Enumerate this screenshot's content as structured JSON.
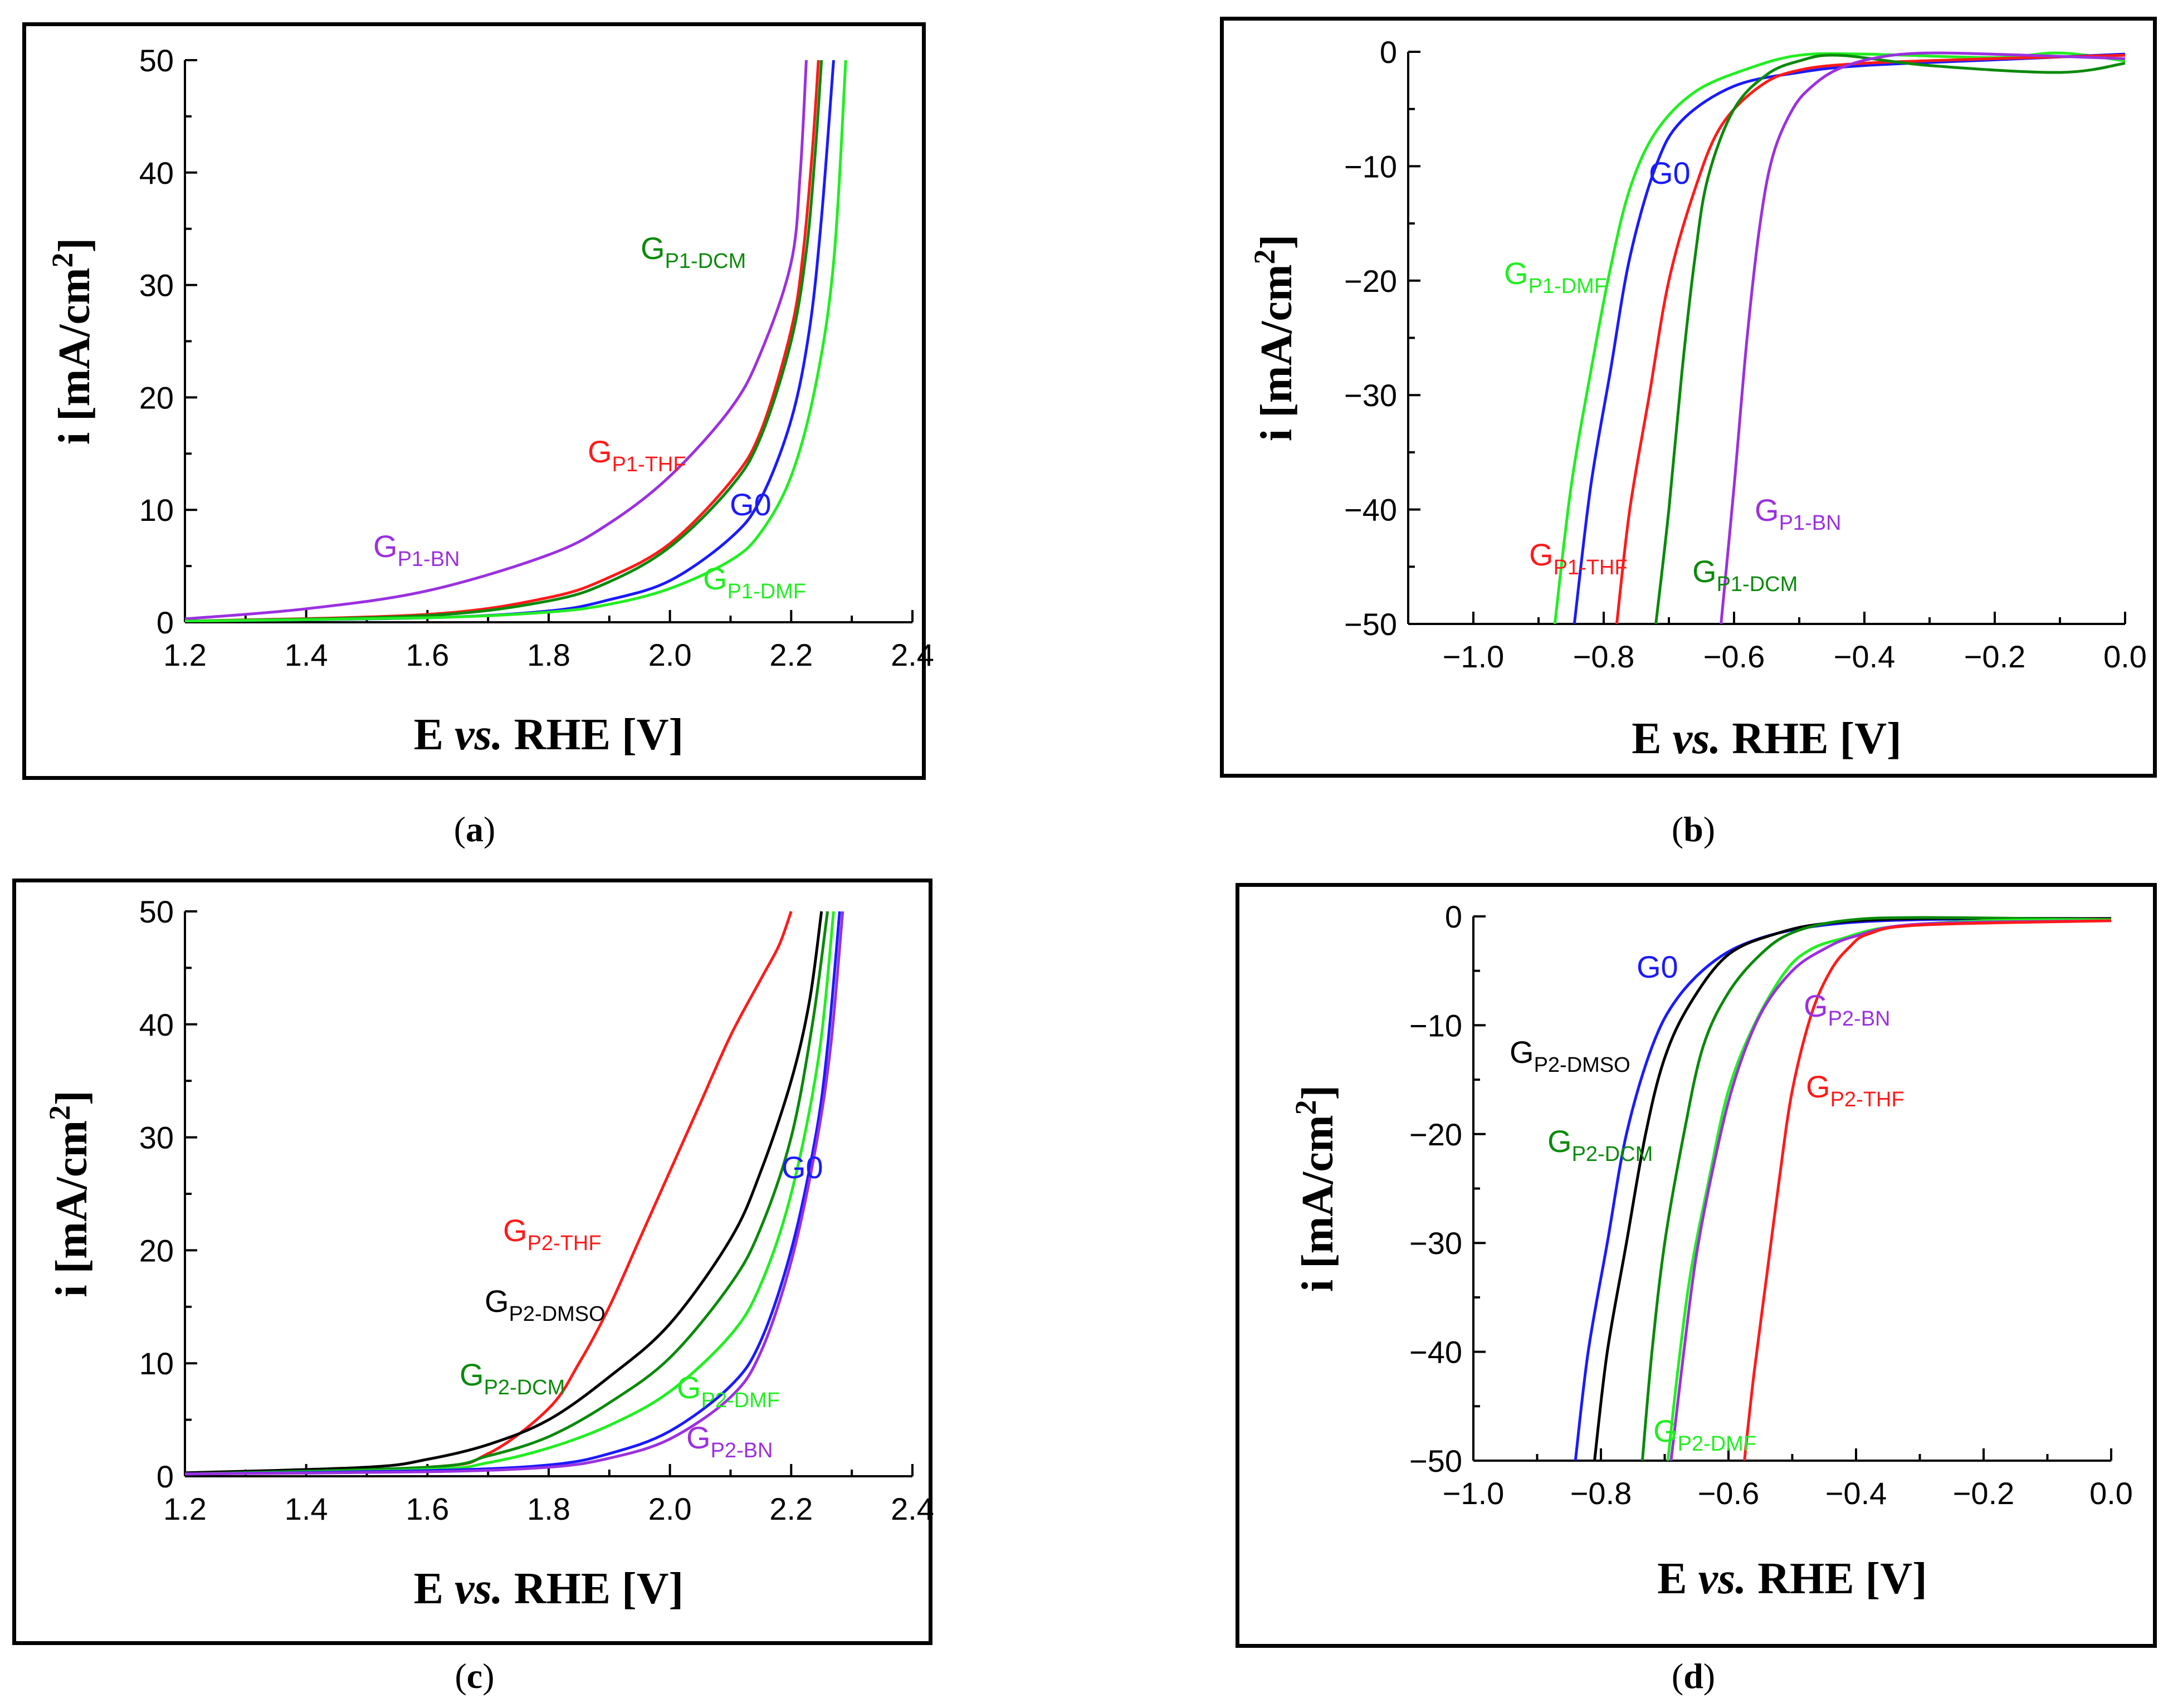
{
  "captions": [
    "a",
    "b",
    "c",
    "d"
  ],
  "chart_data": [
    {
      "id": "a",
      "type": "line",
      "xlabel": "E vs. RHE [V]",
      "xlabel_parts": [
        "E ",
        "vs.",
        " RHE [V]"
      ],
      "ylabel": "i [mA/cm2]",
      "ylabel_parts": [
        "i [mA/cm",
        "2",
        "]"
      ],
      "xlim": [
        1.2,
        2.4
      ],
      "ylim": [
        0,
        50
      ],
      "xticks": [
        1.2,
        1.4,
        1.6,
        1.8,
        2.0,
        2.2,
        2.4
      ],
      "xtick_labels": [
        "1.2",
        "1.4",
        "1.6",
        "1.8",
        "2.0",
        "2.2",
        "2.4"
      ],
      "yticks": [
        0,
        10,
        20,
        30,
        40,
        50
      ],
      "ytick_labels": [
        "0",
        "10",
        "20",
        "30",
        "40",
        "50"
      ],
      "series": [
        {
          "name": "GP1-BN",
          "color": "#9b30e0",
          "x": [
            1.2,
            1.4,
            1.6,
            1.8,
            1.9,
            2.0,
            2.1,
            2.15,
            2.2,
            2.215,
            2.225
          ],
          "y": [
            0.3,
            1.2,
            2.8,
            6.0,
            8.8,
            13.0,
            19.0,
            24.0,
            32.0,
            40.0,
            50.0
          ]
        },
        {
          "name": "GP1-THF",
          "color": "#ff1a1a",
          "x": [
            1.2,
            1.6,
            1.8,
            1.9,
            2.0,
            2.1,
            2.15,
            2.2,
            2.22,
            2.235,
            2.245
          ],
          "y": [
            0.1,
            0.7,
            2.2,
            4.0,
            7.0,
            12.5,
            17.0,
            26.0,
            33.0,
            42.0,
            50.0
          ]
        },
        {
          "name": "GP1-DCM",
          "color": "#0a8a0a",
          "x": [
            1.2,
            1.6,
            1.8,
            1.9,
            2.0,
            2.1,
            2.15,
            2.2,
            2.225,
            2.24,
            2.25
          ],
          "y": [
            0.1,
            0.6,
            1.9,
            3.6,
            6.7,
            12.0,
            16.5,
            25.0,
            33.0,
            42.0,
            50.0
          ]
        },
        {
          "name": "G0",
          "color": "#1a1aff",
          "x": [
            1.2,
            1.6,
            1.8,
            1.9,
            2.0,
            2.1,
            2.15,
            2.2,
            2.23,
            2.25,
            2.27
          ],
          "y": [
            0.1,
            0.4,
            1.0,
            2.0,
            3.7,
            7.5,
            11.0,
            18.0,
            26.0,
            36.0,
            50.0
          ]
        },
        {
          "name": "GP1-DMF",
          "color": "#22ee22",
          "x": [
            1.2,
            1.6,
            1.8,
            1.9,
            2.0,
            2.1,
            2.15,
            2.2,
            2.24,
            2.27,
            2.29
          ],
          "y": [
            0.1,
            0.4,
            0.9,
            1.6,
            3.0,
            5.5,
            8.0,
            13.0,
            21.0,
            32.0,
            50.0
          ]
        }
      ],
      "labels": [
        {
          "main": "G",
          "sub": "P1-BN",
          "color": "#9b30e0"
        },
        {
          "main": "G",
          "sub": "P1-THF",
          "color": "#ff1a1a"
        },
        {
          "main": "G",
          "sub": "P1-DCM",
          "color": "#0a8a0a"
        },
        {
          "main": "G0",
          "sub": "",
          "color": "#1a1aff"
        },
        {
          "main": "G",
          "sub": "P1-DMF",
          "color": "#22ee22"
        }
      ]
    },
    {
      "id": "b",
      "type": "line",
      "xlabel": "E vs. RHE [V]",
      "xlabel_parts": [
        "E ",
        "vs.",
        " RHE [V]"
      ],
      "ylabel": "i [mA/cm2]",
      "ylabel_parts": [
        "i [mA/cm",
        "2",
        "]"
      ],
      "xlim": [
        -1.1,
        0.0
      ],
      "ylim": [
        -50,
        0
      ],
      "xticks": [
        -1.0,
        -0.8,
        -0.6,
        -0.4,
        -0.2,
        0.0
      ],
      "xtick_labels": [
        "−1.0",
        "−0.8",
        "−0.6",
        "−0.4",
        "−0.2",
        "0.0"
      ],
      "yticks": [
        0,
        -10,
        -20,
        -30,
        -40,
        -50
      ],
      "ytick_labels": [
        "0",
        "−10",
        "−20",
        "−30",
        "−40",
        "−50"
      ],
      "series": [
        {
          "name": "GP1-DMF",
          "color": "#22ee22",
          "x": [
            -0.875,
            -0.85,
            -0.82,
            -0.79,
            -0.76,
            -0.72,
            -0.66,
            -0.58,
            -0.5,
            -0.4,
            -0.2,
            -0.1,
            0.0
          ],
          "y": [
            -50.0,
            -38.0,
            -28.0,
            -19.0,
            -12.0,
            -7.0,
            -3.5,
            -1.5,
            -0.3,
            -0.2,
            -0.5,
            -0.1,
            -0.8
          ]
        },
        {
          "name": "G0",
          "color": "#1a1aff",
          "x": [
            -0.845,
            -0.82,
            -0.79,
            -0.76,
            -0.72,
            -0.68,
            -0.6,
            -0.5,
            -0.4,
            -0.2,
            0.0
          ],
          "y": [
            -50.0,
            -38.0,
            -28.0,
            -18.0,
            -10.0,
            -6.0,
            -3.0,
            -1.8,
            -1.2,
            -0.7,
            -0.2
          ]
        },
        {
          "name": "GP1-THF",
          "color": "#ff1a1a",
          "x": [
            -0.78,
            -0.76,
            -0.73,
            -0.7,
            -0.66,
            -0.62,
            -0.56,
            -0.5,
            -0.4,
            -0.2,
            0.0
          ],
          "y": [
            -50.0,
            -40.0,
            -30.0,
            -20.0,
            -12.0,
            -6.5,
            -3.0,
            -1.6,
            -1.0,
            -0.6,
            -0.3
          ]
        },
        {
          "name": "GP1-DCM",
          "color": "#0a8a0a",
          "x": [
            -0.72,
            -0.7,
            -0.68,
            -0.66,
            -0.64,
            -0.6,
            -0.55,
            -0.5,
            -0.44,
            -0.3,
            -0.1,
            0.0
          ],
          "y": [
            -50.0,
            -40.0,
            -28.0,
            -18.0,
            -11.0,
            -5.0,
            -2.0,
            -0.8,
            -0.3,
            -1.2,
            -1.8,
            -1.0
          ]
        },
        {
          "name": "GP1-BN",
          "color": "#9b30e0",
          "x": [
            -0.62,
            -0.6,
            -0.58,
            -0.56,
            -0.54,
            -0.51,
            -0.48,
            -0.44,
            -0.38,
            -0.3,
            -0.15,
            0.0
          ],
          "y": [
            -50.0,
            -38.0,
            -25.0,
            -15.0,
            -9.0,
            -5.0,
            -3.0,
            -1.5,
            -0.5,
            -0.1,
            -0.3,
            -0.6
          ]
        }
      ],
      "labels": [
        {
          "main": "G0",
          "sub": "",
          "color": "#1a1aff"
        },
        {
          "main": "G",
          "sub": "P1-DMF",
          "color": "#22ee22"
        },
        {
          "main": "G",
          "sub": "P1-THF",
          "color": "#ff1a1a"
        },
        {
          "main": "G",
          "sub": "P1-DCM",
          "color": "#0a8a0a"
        },
        {
          "main": "G",
          "sub": "P1-BN",
          "color": "#9b30e0"
        }
      ]
    },
    {
      "id": "c",
      "type": "line",
      "xlabel": "E vs. RHE [V]",
      "xlabel_parts": [
        "E ",
        "vs.",
        " RHE [V]"
      ],
      "ylabel": "i [mA/cm2]",
      "ylabel_parts": [
        "i [mA/cm",
        "2",
        "]"
      ],
      "xlim": [
        1.2,
        2.4
      ],
      "ylim": [
        0,
        50
      ],
      "xticks": [
        1.2,
        1.4,
        1.6,
        1.8,
        2.0,
        2.2,
        2.4
      ],
      "xtick_labels": [
        "1.2",
        "1.4",
        "1.6",
        "1.8",
        "2.0",
        "2.2",
        "2.4"
      ],
      "yticks": [
        0,
        10,
        20,
        30,
        40,
        50
      ],
      "ytick_labels": [
        "0",
        "10",
        "20",
        "30",
        "40",
        "50"
      ],
      "series": [
        {
          "name": "GP2-THF",
          "color": "#ff1a1a",
          "x": [
            1.2,
            1.6,
            1.7,
            1.8,
            1.85,
            1.9,
            1.95,
            2.0,
            2.05,
            2.1,
            2.15,
            2.18,
            2.2
          ],
          "y": [
            0.2,
            0.8,
            2.0,
            6.0,
            10.0,
            15.0,
            21.0,
            27.0,
            33.0,
            39.0,
            44.0,
            47.0,
            50.0
          ]
        },
        {
          "name": "GP2-DMSO",
          "color": "#000000",
          "x": [
            1.2,
            1.5,
            1.6,
            1.7,
            1.8,
            1.9,
            2.0,
            2.1,
            2.15,
            2.2,
            2.23,
            2.25
          ],
          "y": [
            0.3,
            0.8,
            1.5,
            2.8,
            5.0,
            8.8,
            13.5,
            21.0,
            27.0,
            35.0,
            42.0,
            50.0
          ]
        },
        {
          "name": "GP2-DCM",
          "color": "#0a8a0a",
          "x": [
            1.2,
            1.6,
            1.7,
            1.8,
            1.9,
            2.0,
            2.1,
            2.15,
            2.2,
            2.235,
            2.26
          ],
          "y": [
            0.2,
            0.8,
            1.8,
            3.5,
            6.5,
            10.5,
            17.0,
            22.0,
            30.0,
            40.0,
            50.0
          ]
        },
        {
          "name": "GP2-DMF",
          "color": "#22ee22",
          "x": [
            1.2,
            1.6,
            1.7,
            1.8,
            1.9,
            2.0,
            2.1,
            2.15,
            2.2,
            2.245,
            2.27
          ],
          "y": [
            0.2,
            0.6,
            1.2,
            2.5,
            4.5,
            7.5,
            12.5,
            17.0,
            25.0,
            37.0,
            50.0
          ]
        },
        {
          "name": "G0",
          "color": "#1a1aff",
          "x": [
            1.2,
            1.6,
            1.8,
            1.9,
            2.0,
            2.1,
            2.15,
            2.2,
            2.24,
            2.26,
            2.28
          ],
          "y": [
            0.2,
            0.5,
            1.0,
            2.0,
            4.0,
            8.0,
            12.0,
            20.0,
            30.0,
            38.0,
            50.0
          ]
        },
        {
          "name": "GP2-BN",
          "color": "#9b30e0",
          "x": [
            1.2,
            1.6,
            1.8,
            1.9,
            2.0,
            2.1,
            2.15,
            2.2,
            2.24,
            2.265,
            2.285
          ],
          "y": [
            0.2,
            0.4,
            0.8,
            1.6,
            3.3,
            7.0,
            11.0,
            19.0,
            29.0,
            38.0,
            50.0
          ]
        }
      ],
      "labels": [
        {
          "main": "G0",
          "sub": "",
          "color": "#1a1aff"
        },
        {
          "main": "G",
          "sub": "P2-THF",
          "color": "#ff1a1a"
        },
        {
          "main": "G",
          "sub": "P2-DMSO",
          "color": "#000000"
        },
        {
          "main": "G",
          "sub": "P2-DCM",
          "color": "#0a8a0a"
        },
        {
          "main": "G",
          "sub": "P2-DMF",
          "color": "#22ee22"
        },
        {
          "main": "G",
          "sub": "P2-BN",
          "color": "#9b30e0"
        }
      ]
    },
    {
      "id": "d",
      "type": "line",
      "xlabel": "E vs. RHE [V]",
      "xlabel_parts": [
        "E ",
        "vs.",
        " RHE [V]"
      ],
      "ylabel": "i [mA/cm2]",
      "ylabel_parts": [
        "i [mA/cm",
        "2",
        "]"
      ],
      "xlim": [
        -1.0,
        0.0
      ],
      "ylim": [
        -50,
        0
      ],
      "xticks": [
        -1.0,
        -0.8,
        -0.6,
        -0.4,
        -0.2,
        0.0
      ],
      "xtick_labels": [
        "−1.0",
        "−0.8",
        "−0.6",
        "−0.4",
        "−0.2",
        "0.0"
      ],
      "yticks": [
        0,
        -10,
        -20,
        -30,
        -40,
        -50
      ],
      "ytick_labels": [
        "0",
        "−10",
        "−20",
        "−30",
        "−40",
        "−50"
      ],
      "series": [
        {
          "name": "G0",
          "color": "#1a1aff",
          "x": [
            -0.84,
            -0.82,
            -0.79,
            -0.76,
            -0.72,
            -0.68,
            -0.62,
            -0.55,
            -0.45,
            -0.3,
            0.0
          ],
          "y": [
            -50.0,
            -40.0,
            -30.0,
            -20.0,
            -12.0,
            -7.5,
            -4.0,
            -2.0,
            -0.8,
            -0.3,
            -0.2
          ]
        },
        {
          "name": "GP2-DMSO",
          "color": "#000000",
          "x": [
            -0.81,
            -0.79,
            -0.76,
            -0.73,
            -0.7,
            -0.66,
            -0.6,
            -0.52,
            -0.44,
            -0.3,
            0.0
          ],
          "y": [
            -50.0,
            -40.0,
            -30.0,
            -20.0,
            -13.0,
            -8.0,
            -3.5,
            -1.5,
            -0.6,
            -0.2,
            -0.2
          ]
        },
        {
          "name": "GP2-DCM",
          "color": "#0a8a0a",
          "x": [
            -0.735,
            -0.72,
            -0.7,
            -0.67,
            -0.64,
            -0.6,
            -0.55,
            -0.5,
            -0.42,
            -0.3,
            0.0
          ],
          "y": [
            -50.0,
            -40.0,
            -30.0,
            -20.0,
            -12.0,
            -7.0,
            -3.5,
            -1.5,
            -0.4,
            -0.1,
            -0.3
          ]
        },
        {
          "name": "GP2-DMF",
          "color": "#22ee22",
          "x": [
            -0.695,
            -0.68,
            -0.66,
            -0.63,
            -0.6,
            -0.56,
            -0.51,
            -0.47,
            -0.42,
            -0.35,
            -0.2,
            0.0
          ],
          "y": [
            -50.0,
            -42.0,
            -33.0,
            -24.0,
            -16.0,
            -10.0,
            -5.0,
            -3.0,
            -2.0,
            -1.0,
            -0.4,
            -0.3
          ]
        },
        {
          "name": "GP2-BN",
          "color": "#9b30e0",
          "x": [
            -0.69,
            -0.67,
            -0.65,
            -0.62,
            -0.59,
            -0.55,
            -0.5,
            -0.45,
            -0.4,
            -0.3,
            0.0
          ],
          "y": [
            -50.0,
            -40.0,
            -31.0,
            -22.0,
            -15.0,
            -9.0,
            -5.0,
            -3.0,
            -1.8,
            -0.7,
            -0.4
          ]
        },
        {
          "name": "GP2-THF",
          "color": "#ff1a1a",
          "x": [
            -0.575,
            -0.56,
            -0.54,
            -0.52,
            -0.5,
            -0.47,
            -0.44,
            -0.41,
            -0.38,
            -0.3,
            0.0
          ],
          "y": [
            -50.0,
            -42.0,
            -33.0,
            -24.0,
            -16.0,
            -9.0,
            -5.0,
            -2.8,
            -1.6,
            -0.8,
            -0.4
          ]
        }
      ],
      "labels": [
        {
          "main": "G0",
          "sub": "",
          "color": "#1a1aff"
        },
        {
          "main": "G",
          "sub": "P2-DMSO",
          "color": "#000000"
        },
        {
          "main": "G",
          "sub": "P2-DCM",
          "color": "#0a8a0a"
        },
        {
          "main": "G",
          "sub": "P2-BN",
          "color": "#9b30e0"
        },
        {
          "main": "G",
          "sub": "P2-THF",
          "color": "#ff1a1a"
        },
        {
          "main": "G",
          "sub": "P2-DMF",
          "color": "#22ee22"
        }
      ]
    }
  ]
}
